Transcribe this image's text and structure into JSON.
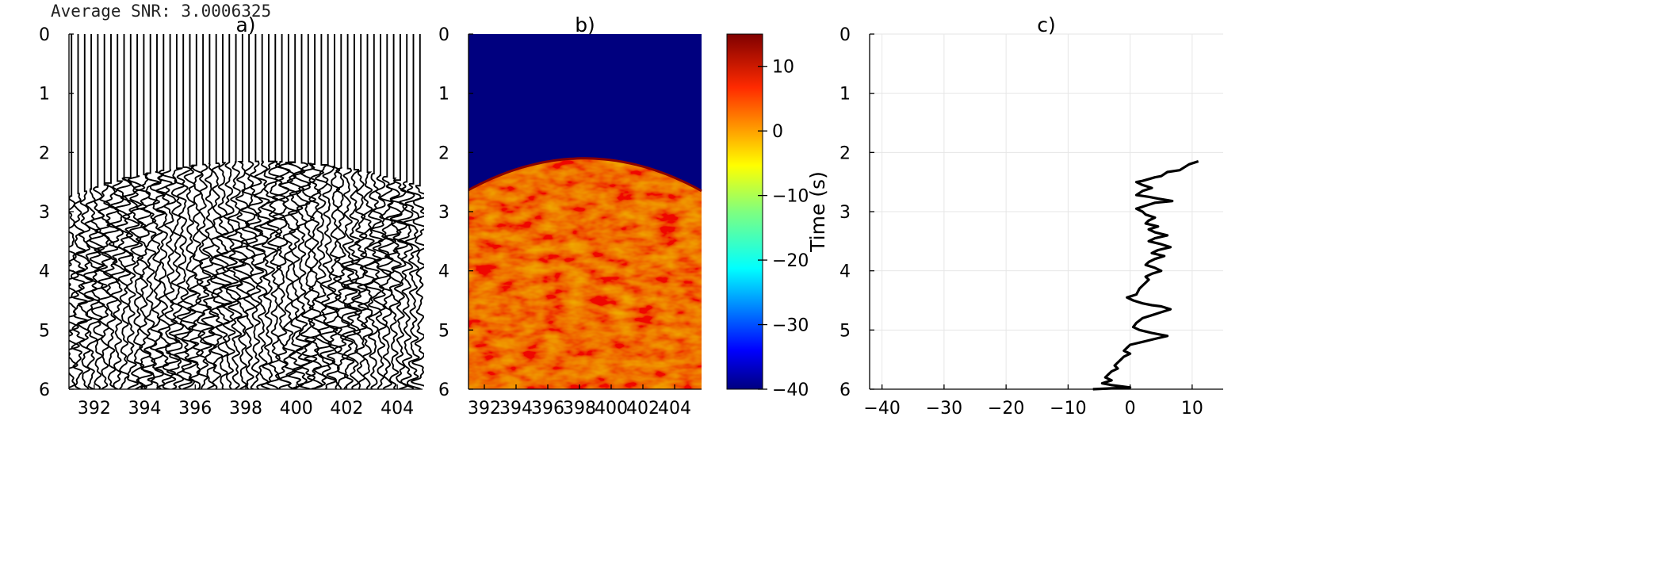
{
  "header": {
    "snr_text": "Average SNR: 3.0006325"
  },
  "chart_data": [
    {
      "id": "a",
      "type": "line",
      "title": "a)",
      "subtype": "seismic-wiggle-traces",
      "x_ticks": [
        392,
        394,
        396,
        398,
        400,
        402,
        404
      ],
      "y_ticks": [
        0,
        1,
        2,
        3,
        4,
        5,
        6
      ],
      "xlim": [
        391,
        405
      ],
      "ylim": [
        6,
        0
      ],
      "y_inverted": true,
      "trace_count": 54,
      "first_arrival_time_at_edges": 2.75,
      "first_arrival_time_at_apex": 2.15,
      "apex_x": 398.6,
      "trace_color": "#000000"
    },
    {
      "id": "b",
      "type": "heatmap",
      "title": "b)",
      "x_ticks": [
        392,
        394,
        396,
        398,
        400,
        402,
        404
      ],
      "y_ticks": [
        0,
        1,
        2,
        3,
        4,
        5,
        6
      ],
      "xlim": [
        391,
        405.7
      ],
      "ylim": [
        6,
        0
      ],
      "y_inverted": true,
      "colormap": "jet",
      "background_value": -40,
      "boundary_time_at_left": 2.65,
      "boundary_time_at_right": 2.65,
      "boundary_time_at_apex": 2.1,
      "apex_x": 398.3,
      "colorbar": {
        "label": "Time (s)",
        "range": [
          -40,
          15
        ],
        "ticks": [
          10,
          0,
          -10,
          -20,
          -30,
          -40
        ],
        "tick_labels": [
          "10",
          "0",
          "−10",
          "−20",
          "−30",
          "−40"
        ]
      }
    },
    {
      "id": "c",
      "type": "line",
      "title": "c)",
      "x_ticks": [
        -40,
        -30,
        -20,
        -10,
        0,
        10
      ],
      "x_tick_labels": [
        "−40",
        "−30",
        "−20",
        "−10",
        "0",
        "10"
      ],
      "y_ticks": [
        0,
        1,
        2,
        3,
        4,
        5,
        6
      ],
      "xlim": [
        -42,
        15
      ],
      "ylim": [
        6,
        0
      ],
      "y_inverted": true,
      "grid": true,
      "series": [
        {
          "color": "#000000",
          "points": [
            [
              11,
              2.15
            ],
            [
              9.5,
              2.2
            ],
            [
              8,
              2.3
            ],
            [
              6,
              2.33
            ],
            [
              5,
              2.4
            ],
            [
              4,
              2.42
            ],
            [
              2,
              2.48
            ],
            [
              1,
              2.5
            ],
            [
              2,
              2.55
            ],
            [
              3.5,
              2.6
            ],
            [
              2,
              2.65
            ],
            [
              1,
              2.72
            ],
            [
              3,
              2.75
            ],
            [
              4.5,
              2.78
            ],
            [
              6.8,
              2.82
            ],
            [
              4,
              2.85
            ],
            [
              2.5,
              2.9
            ],
            [
              1,
              2.95
            ],
            [
              2,
              3.0
            ],
            [
              2.5,
              3.05
            ],
            [
              4,
              3.1
            ],
            [
              3,
              3.15
            ],
            [
              2.5,
              3.2
            ],
            [
              4.5,
              3.25
            ],
            [
              3,
              3.3
            ],
            [
              4,
              3.35
            ],
            [
              6,
              3.4
            ],
            [
              4,
              3.45
            ],
            [
              3,
              3.5
            ],
            [
              5,
              3.55
            ],
            [
              6.5,
              3.6
            ],
            [
              4.5,
              3.65
            ],
            [
              3.5,
              3.7
            ],
            [
              5.5,
              3.75
            ],
            [
              4,
              3.8
            ],
            [
              3,
              3.85
            ],
            [
              2.5,
              3.9
            ],
            [
              4,
              3.95
            ],
            [
              5,
              4.0
            ],
            [
              3.5,
              4.05
            ],
            [
              2.5,
              4.1
            ],
            [
              3,
              4.15
            ],
            [
              2.5,
              4.2
            ],
            [
              1.5,
              4.3
            ],
            [
              1,
              4.4
            ],
            [
              -0.5,
              4.45
            ],
            [
              0.5,
              4.5
            ],
            [
              2,
              4.55
            ],
            [
              3.5,
              4.58
            ],
            [
              5,
              4.6
            ],
            [
              6.5,
              4.65
            ],
            [
              5,
              4.7
            ],
            [
              3.5,
              4.75
            ],
            [
              2,
              4.8
            ],
            [
              1,
              4.88
            ],
            [
              0.5,
              4.95
            ],
            [
              1.5,
              5.0
            ],
            [
              3.5,
              5.05
            ],
            [
              6,
              5.1
            ],
            [
              4,
              5.15
            ],
            [
              2,
              5.2
            ],
            [
              0,
              5.25
            ],
            [
              -0.5,
              5.3
            ],
            [
              -1,
              5.35
            ],
            [
              0,
              5.4
            ],
            [
              -1,
              5.45
            ],
            [
              -1.5,
              5.5
            ],
            [
              -2,
              5.55
            ],
            [
              -2.5,
              5.6
            ],
            [
              -2,
              5.65
            ],
            [
              -3,
              5.7
            ],
            [
              -3.5,
              5.75
            ],
            [
              -4,
              5.8
            ],
            [
              -3,
              5.85
            ],
            [
              -4.5,
              5.9
            ],
            [
              -3,
              5.93
            ],
            [
              0,
              5.97
            ],
            [
              -6,
              6.0
            ]
          ]
        }
      ]
    }
  ]
}
